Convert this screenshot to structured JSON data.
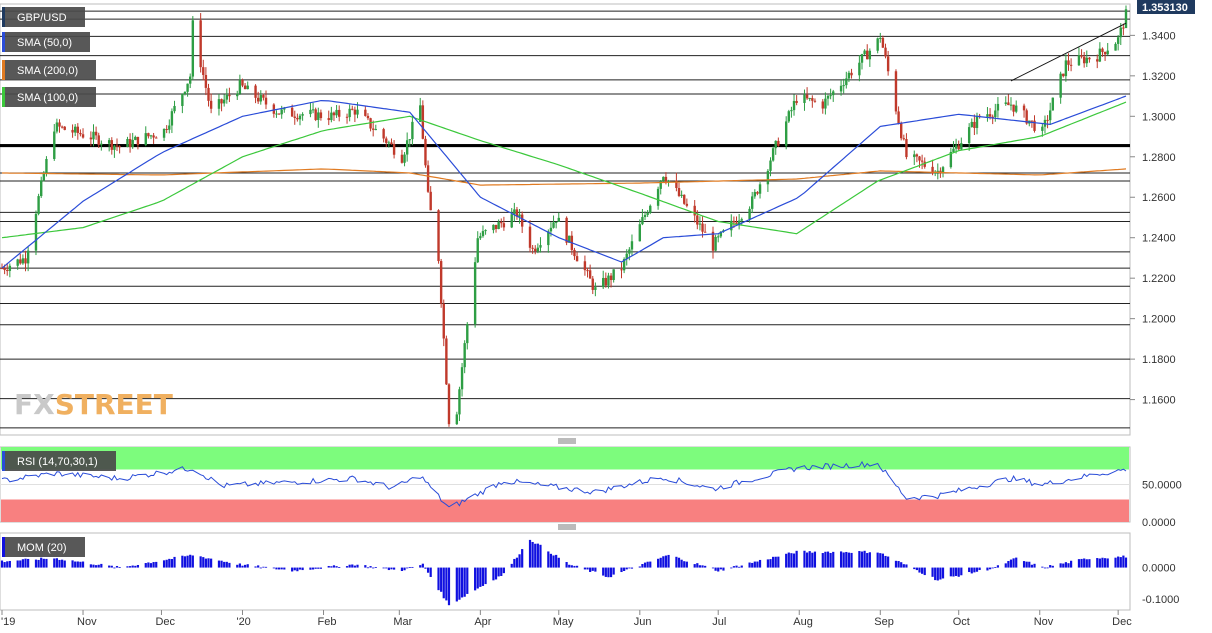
{
  "chart_data": {
    "type": "candlestick",
    "symbol": "GBP/USD",
    "last_price": "1.353130",
    "colors": {
      "up": "#2e9e44",
      "down": "#c0392b",
      "sma50": "#2a4cd8",
      "sma200": "#e07b22",
      "sma100": "#3cc83c",
      "price_badge": "#1f3a5f",
      "rsi_overbought": "#7dfc7d",
      "rsi_oversold": "#f88080",
      "rsi_line": "#2a4cd8",
      "momentum": "#1010e0",
      "watermark_fx": "#c9c9c9",
      "watermark_street": "#f0b060"
    },
    "legend": [
      {
        "label": "GBP/USD",
        "swatch": "#1f3a5f"
      },
      {
        "label": "SMA (50,0)",
        "swatch": "#2a4cd8"
      },
      {
        "label": "SMA (200,0)",
        "swatch": "#e07b22"
      },
      {
        "label": "SMA (100,0)",
        "swatch": "#3cc83c"
      }
    ],
    "price_axis": {
      "ticks": [
        "1.3400",
        "1.3200",
        "1.3000",
        "1.2800",
        "1.2600",
        "1.2400",
        "1.2200",
        "1.2000",
        "1.1800",
        "1.1600"
      ],
      "range": [
        1.1425,
        1.3555
      ]
    },
    "time_axis": [
      "'19",
      "Nov",
      "Dec",
      "'20",
      "Feb",
      "Mar",
      "Apr",
      "May",
      "Jun",
      "Jul",
      "Aug",
      "Sep",
      "Oct",
      "Nov",
      "Dec"
    ],
    "horizontal_levels": [
      1.352,
      1.348,
      1.3395,
      1.33,
      1.318,
      1.311,
      1.286,
      1.272,
      1.268,
      1.2525,
      1.248,
      1.233,
      1.225,
      1.216,
      1.2075,
      1.197,
      1.18,
      1.1605,
      1.146
    ],
    "bold_level": 1.2855,
    "trendline": {
      "from": [
        "2020-10-21",
        1.3175
      ],
      "to": [
        "2020-12-04",
        1.346
      ]
    },
    "price_keypoints": [
      [
        "2019-10-01",
        1.225
      ],
      [
        "2019-10-10",
        1.23
      ],
      [
        "2019-10-21",
        1.295
      ],
      [
        "2019-11-04",
        1.29
      ],
      [
        "2019-11-15",
        1.285
      ],
      [
        "2019-12-02",
        1.293
      ],
      [
        "2019-12-12",
        1.32
      ],
      [
        "2019-12-13",
        1.345
      ],
      [
        "2019-12-20",
        1.302
      ],
      [
        "2019-12-31",
        1.315
      ],
      [
        "2020-01-15",
        1.302
      ],
      [
        "2020-02-05",
        1.3
      ],
      [
        "2020-02-13",
        1.303
      ],
      [
        "2020-02-25",
        1.288
      ],
      [
        "2020-03-02",
        1.28
      ],
      [
        "2020-03-09",
        1.305
      ],
      [
        "2020-03-12",
        1.26
      ],
      [
        "2020-03-16",
        1.23
      ],
      [
        "2020-03-20",
        1.15
      ],
      [
        "2020-03-23",
        1.155
      ],
      [
        "2020-03-31",
        1.24
      ],
      [
        "2020-04-15",
        1.252
      ],
      [
        "2020-04-21",
        1.234
      ],
      [
        "2020-04-30",
        1.25
      ],
      [
        "2020-05-15",
        1.214
      ],
      [
        "2020-05-25",
        1.225
      ],
      [
        "2020-06-10",
        1.272
      ],
      [
        "2020-06-29",
        1.236
      ],
      [
        "2020-07-14",
        1.258
      ],
      [
        "2020-07-31",
        1.309
      ],
      [
        "2020-08-10",
        1.306
      ],
      [
        "2020-08-31",
        1.337
      ],
      [
        "2020-09-01",
        1.34
      ],
      [
        "2020-09-11",
        1.28
      ],
      [
        "2020-09-23",
        1.273
      ],
      [
        "2020-10-09",
        1.3
      ],
      [
        "2020-10-21",
        1.306
      ],
      [
        "2020-11-02",
        1.292
      ],
      [
        "2020-11-11",
        1.326
      ],
      [
        "2020-11-23",
        1.33
      ],
      [
        "2020-12-01",
        1.338
      ],
      [
        "2020-12-04",
        1.35
      ]
    ],
    "sma50_keypoints": [
      [
        "2019-10-01",
        1.225
      ],
      [
        "2019-11-01",
        1.258
      ],
      [
        "2019-12-01",
        1.282
      ],
      [
        "2020-01-01",
        1.3
      ],
      [
        "2020-02-01",
        1.308
      ],
      [
        "2020-03-05",
        1.302
      ],
      [
        "2020-04-01",
        1.26
      ],
      [
        "2020-05-01",
        1.24
      ],
      [
        "2020-05-25",
        1.228
      ],
      [
        "2020-06-10",
        1.24
      ],
      [
        "2020-07-01",
        1.242
      ],
      [
        "2020-08-01",
        1.26
      ],
      [
        "2020-09-01",
        1.295
      ],
      [
        "2020-10-01",
        1.301
      ],
      [
        "2020-11-05",
        1.296
      ],
      [
        "2020-12-04",
        1.31
      ]
    ],
    "sma100_keypoints": [
      [
        "2019-10-01",
        1.24
      ],
      [
        "2019-11-01",
        1.245
      ],
      [
        "2019-12-01",
        1.258
      ],
      [
        "2020-01-01",
        1.28
      ],
      [
        "2020-02-01",
        1.293
      ],
      [
        "2020-03-05",
        1.3
      ],
      [
        "2020-04-01",
        1.288
      ],
      [
        "2020-05-01",
        1.276
      ],
      [
        "2020-06-01",
        1.262
      ],
      [
        "2020-07-01",
        1.248
      ],
      [
        "2020-07-31",
        1.242
      ],
      [
        "2020-08-31",
        1.268
      ],
      [
        "2020-10-01",
        1.283
      ],
      [
        "2020-11-01",
        1.29
      ],
      [
        "2020-12-04",
        1.307
      ]
    ],
    "sma200_keypoints": [
      [
        "2019-10-01",
        1.272
      ],
      [
        "2019-12-01",
        1.271
      ],
      [
        "2020-02-01",
        1.274
      ],
      [
        "2020-03-05",
        1.272
      ],
      [
        "2020-04-01",
        1.266
      ],
      [
        "2020-06-01",
        1.267
      ],
      [
        "2020-07-31",
        1.269
      ],
      [
        "2020-09-01",
        1.273
      ],
      [
        "2020-10-01",
        1.272
      ],
      [
        "2020-11-01",
        1.271
      ],
      [
        "2020-12-04",
        1.274
      ]
    ],
    "rsi": {
      "label": "RSI (14,70,30,1)",
      "ticks": [
        "50.0000",
        "0.0000"
      ],
      "range": [
        0,
        100
      ],
      "overbought": 70,
      "oversold": 30,
      "keypoints": [
        [
          "2019-10-01",
          55
        ],
        [
          "2019-10-21",
          65
        ],
        [
          "2019-11-15",
          58
        ],
        [
          "2019-12-13",
          72
        ],
        [
          "2019-12-24",
          48
        ],
        [
          "2020-02-13",
          58
        ],
        [
          "2020-02-28",
          45
        ],
        [
          "2020-03-09",
          62
        ],
        [
          "2020-03-20",
          18
        ],
        [
          "2020-04-10",
          55
        ],
        [
          "2020-05-15",
          40
        ],
        [
          "2020-06-10",
          60
        ],
        [
          "2020-06-29",
          44
        ],
        [
          "2020-07-31",
          72
        ],
        [
          "2020-08-31",
          78
        ],
        [
          "2020-09-11",
          32
        ],
        [
          "2020-09-23",
          35
        ],
        [
          "2020-10-21",
          58
        ],
        [
          "2020-11-02",
          50
        ],
        [
          "2020-11-23",
          64
        ],
        [
          "2020-12-04",
          70
        ]
      ]
    },
    "momentum": {
      "label": "MOM (20)",
      "ticks": [
        "0.0000",
        "-0.1000"
      ],
      "range": [
        -0.135,
        0.11
      ],
      "keypoints": [
        [
          "2019-10-01",
          0.02
        ],
        [
          "2019-10-21",
          0.03
        ],
        [
          "2019-11-15",
          0.0
        ],
        [
          "2019-12-13",
          0.04
        ],
        [
          "2019-12-31",
          0.01
        ],
        [
          "2020-01-20",
          -0.01
        ],
        [
          "2020-02-13",
          0.01
        ],
        [
          "2020-03-01",
          -0.01
        ],
        [
          "2020-03-10",
          0.01
        ],
        [
          "2020-03-20",
          -0.12
        ],
        [
          "2020-03-28",
          -0.08
        ],
        [
          "2020-04-10",
          -0.02
        ],
        [
          "2020-04-20",
          0.09
        ],
        [
          "2020-05-05",
          0.01
        ],
        [
          "2020-05-20",
          -0.03
        ],
        [
          "2020-06-12",
          0.04
        ],
        [
          "2020-07-01",
          -0.01
        ],
        [
          "2020-07-31",
          0.05
        ],
        [
          "2020-08-31",
          0.05
        ],
        [
          "2020-09-23",
          -0.04
        ],
        [
          "2020-10-15",
          0.0
        ],
        [
          "2020-10-23",
          0.03
        ],
        [
          "2020-11-02",
          0.0
        ],
        [
          "2020-11-20",
          0.03
        ],
        [
          "2020-12-04",
          0.035
        ]
      ]
    }
  },
  "watermark": {
    "fx": "FX",
    "street": "STREET"
  }
}
